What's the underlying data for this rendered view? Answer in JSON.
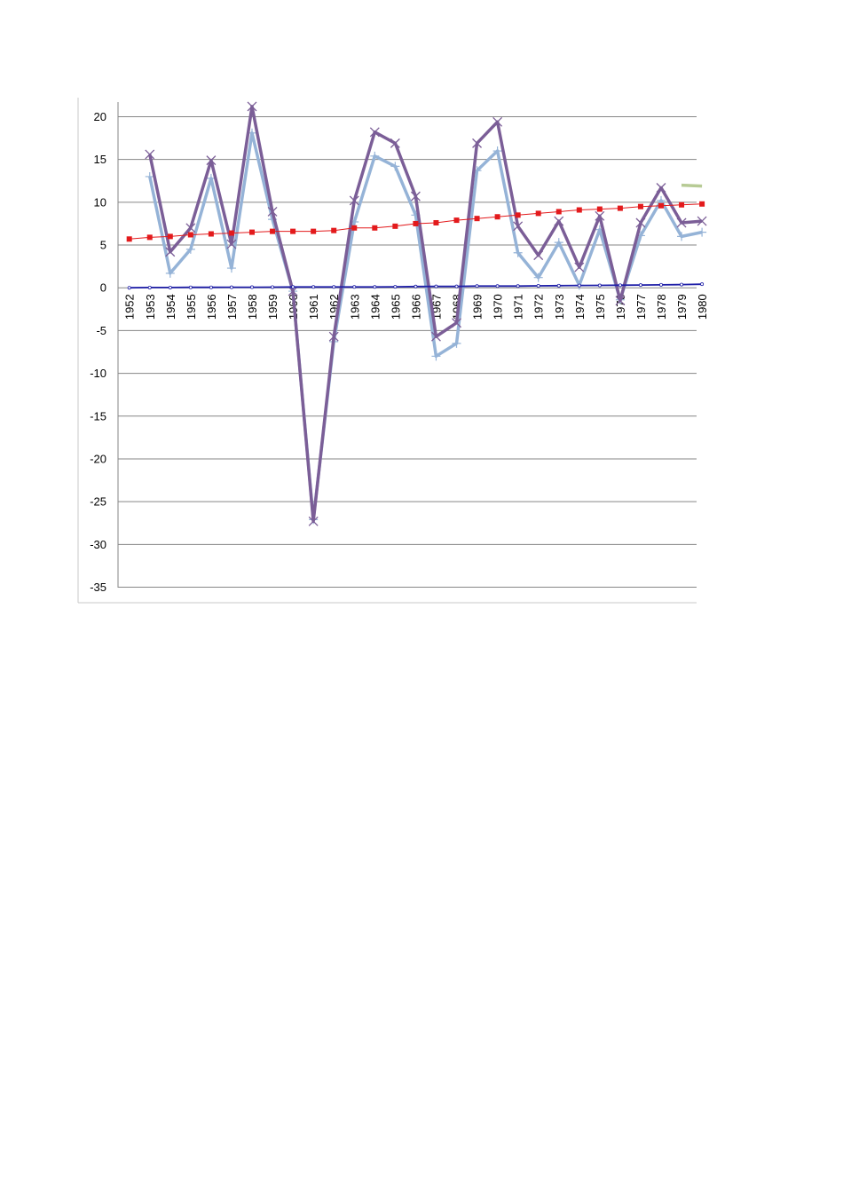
{
  "chart_data": {
    "type": "line",
    "categories": [
      "1952",
      "1953",
      "1954",
      "1955",
      "1956",
      "1957",
      "1958",
      "1959",
      "1960",
      "1961",
      "1962",
      "1963",
      "1964",
      "1965",
      "1966",
      "1967",
      "1968",
      "1969",
      "1970",
      "1971",
      "1972",
      "1973",
      "1974",
      "1975",
      "1976",
      "1977",
      "1978",
      "1979",
      "1980"
    ],
    "ylim": [
      -35,
      20
    ],
    "yticks": [
      20,
      15,
      10,
      5,
      0,
      -5,
      -10,
      -15,
      -20,
      -25,
      -30,
      -35
    ],
    "grid": true,
    "legend": "none",
    "series": [
      {
        "color": "#95b3d7",
        "marker": "plus",
        "values": [
          null,
          13,
          1.7,
          4.5,
          12.8,
          2.3,
          18.1,
          8,
          -0.4,
          -27.1,
          -6.3,
          7.7,
          15.4,
          14.2,
          8.5,
          -8,
          -6.5,
          13.7,
          16,
          4.1,
          1.2,
          5.3,
          0.3,
          6.8,
          -1.4,
          6.1,
          10.2,
          6,
          6.5
        ]
      },
      {
        "color": "#7b5e97",
        "marker": "x",
        "values": [
          null,
          15.6,
          4.2,
          7,
          14.9,
          5.1,
          21.2,
          8.9,
          -0.4,
          -27.3,
          -5.7,
          10.2,
          18.2,
          16.9,
          10.7,
          -5.7,
          -4.1,
          16.9,
          19.4,
          7.2,
          3.8,
          7.8,
          2.4,
          8.4,
          -1.5,
          7.6,
          11.7,
          7.6,
          7.8
        ]
      },
      {
        "color": "#e31a1c",
        "marker": "square",
        "values": [
          5.7,
          5.9,
          6,
          6.2,
          6.3,
          6.4,
          6.5,
          6.6,
          6.6,
          6.6,
          6.7,
          7,
          7,
          7.2,
          7.5,
          7.6,
          7.9,
          8.1,
          8.3,
          8.5,
          8.7,
          8.9,
          9.1,
          9.2,
          9.3,
          9.5,
          9.6,
          9.7,
          9.8
        ]
      },
      {
        "color": "#1f1fa8",
        "marker": "circle",
        "values": [
          0,
          0.03,
          0.03,
          0.05,
          0.05,
          0.06,
          0.07,
          0.08,
          0.1,
          0.1,
          0.1,
          0.1,
          0.1,
          0.12,
          0.15,
          0.16,
          0.16,
          0.2,
          0.2,
          0.2,
          0.23,
          0.25,
          0.27,
          0.28,
          0.3,
          0.32,
          0.35,
          0.38,
          0.42
        ]
      },
      {
        "color": "#b7cb95",
        "marker": "none",
        "values": [
          null,
          null,
          null,
          null,
          null,
          null,
          null,
          null,
          null,
          null,
          null,
          null,
          null,
          null,
          null,
          null,
          null,
          null,
          null,
          null,
          null,
          null,
          null,
          null,
          null,
          null,
          null,
          12,
          11.9
        ]
      }
    ]
  }
}
